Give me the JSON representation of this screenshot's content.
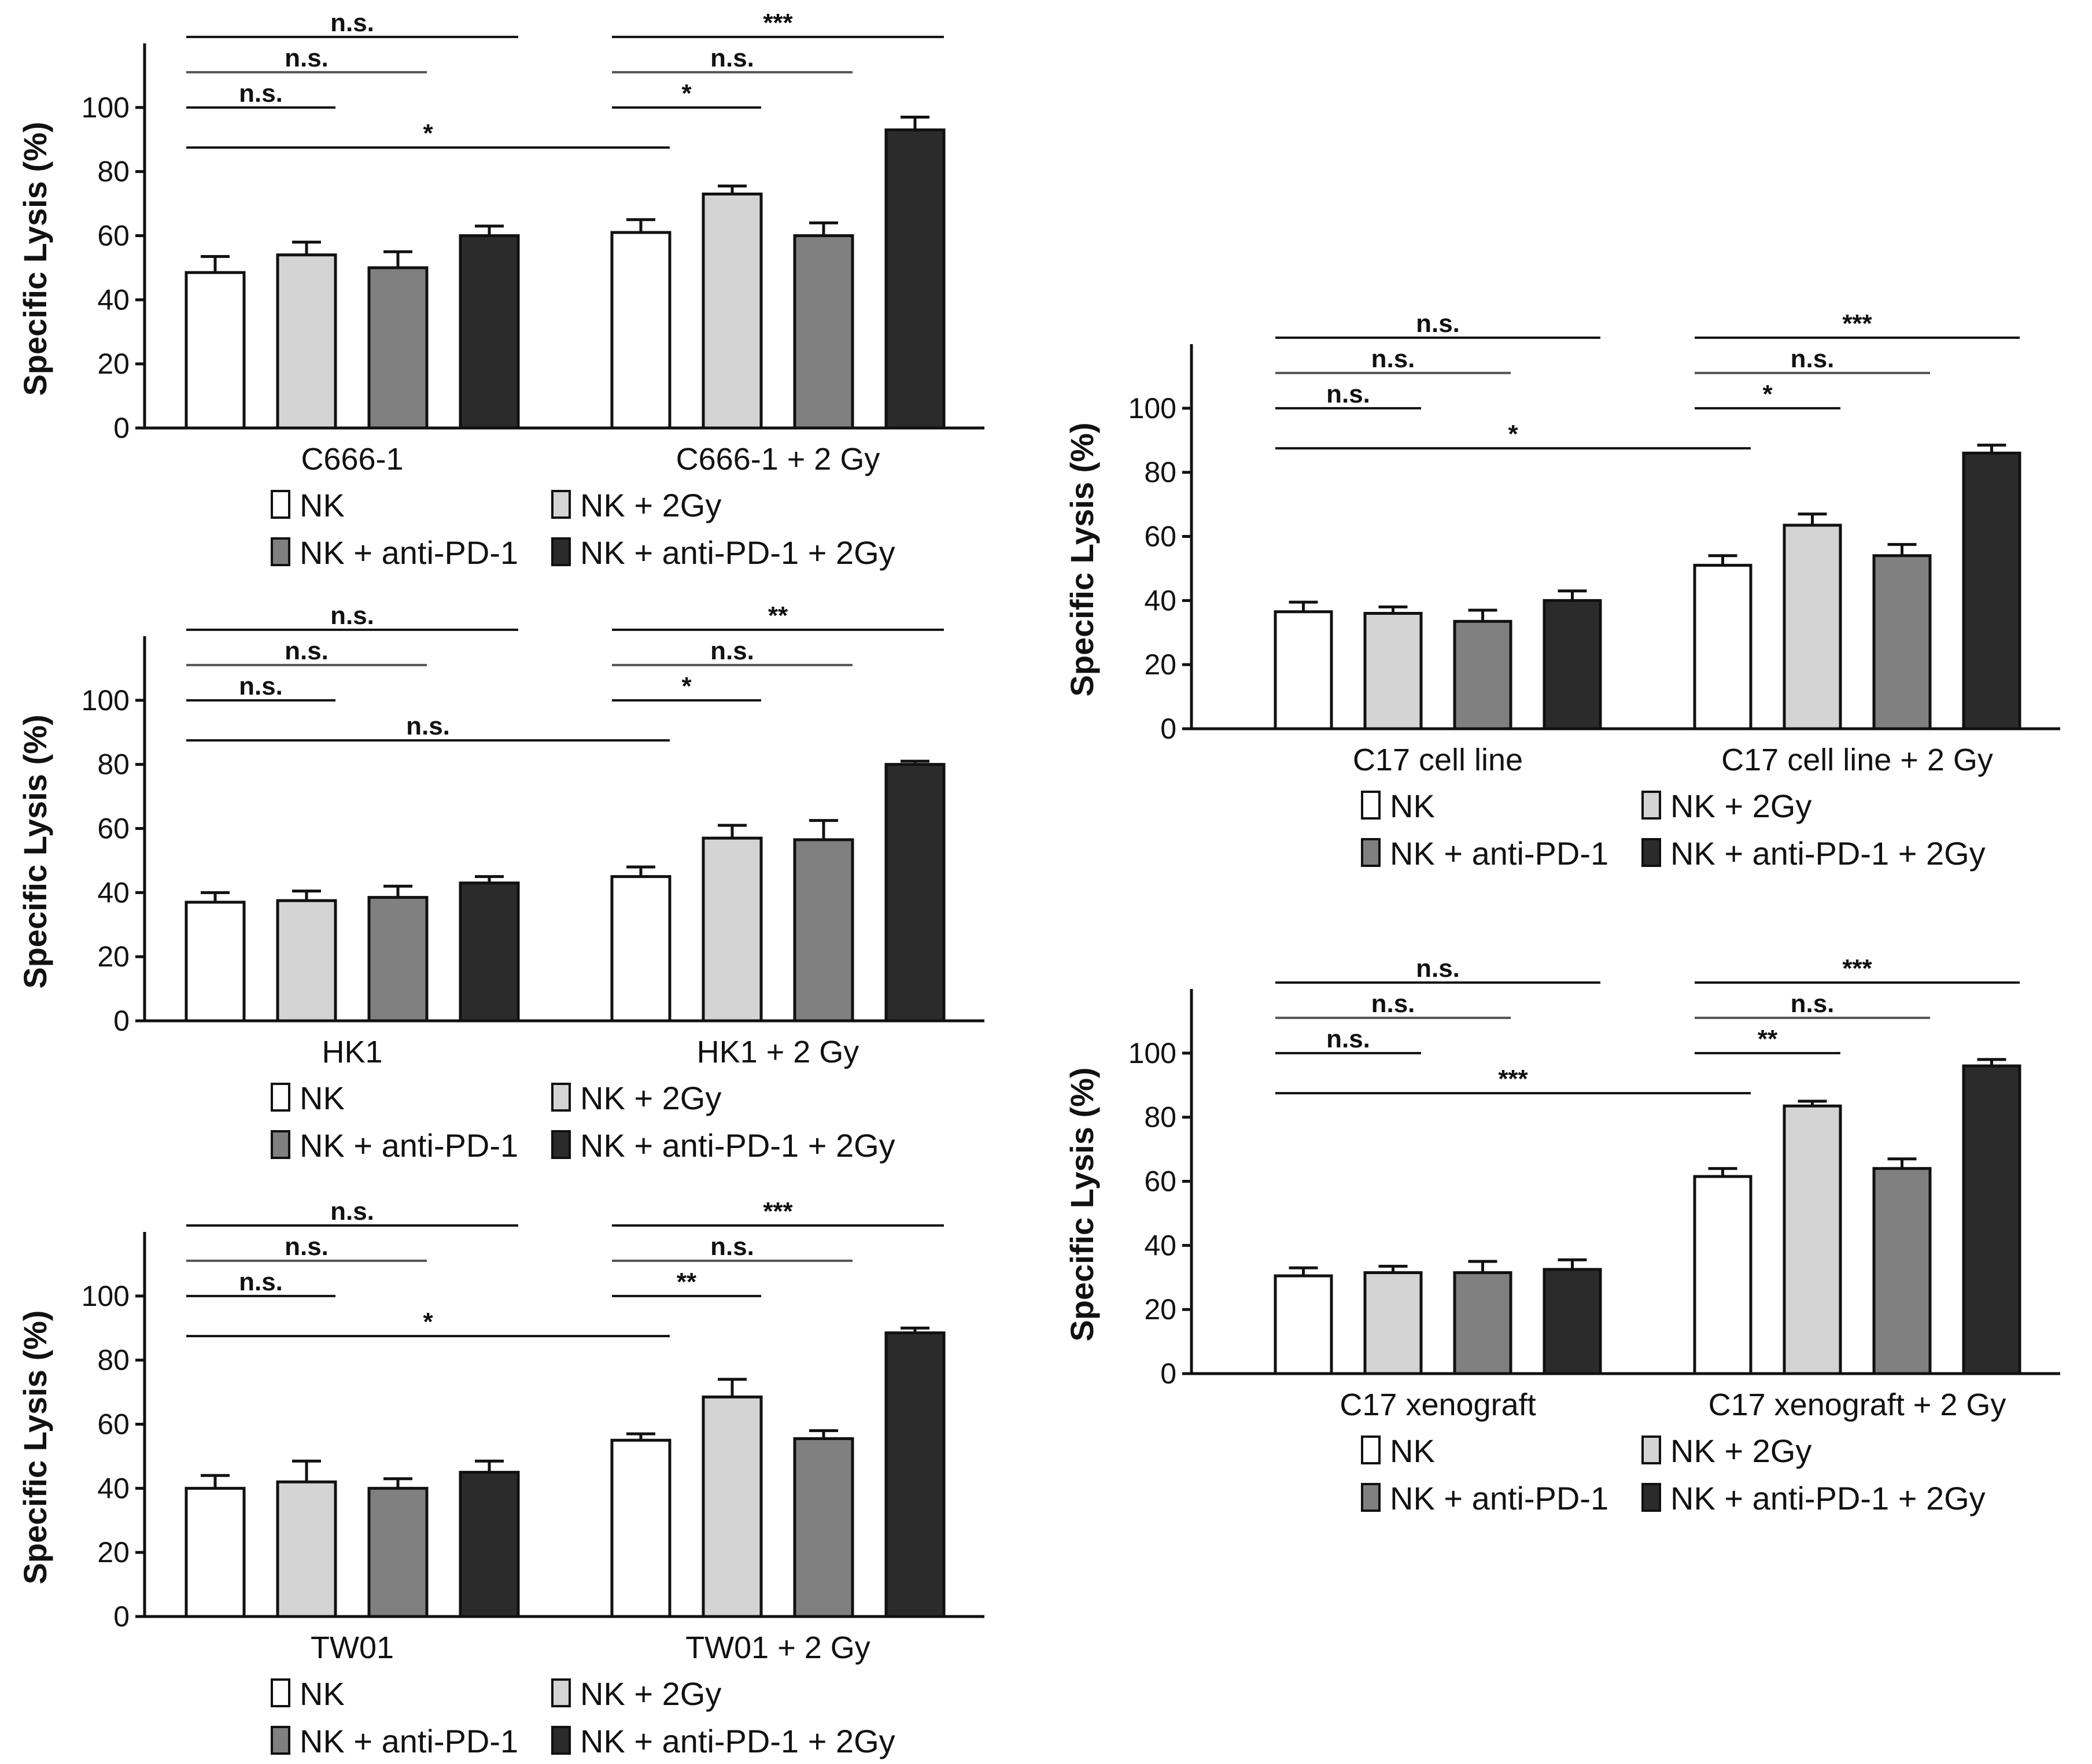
{
  "figure": {
    "legend_labels": [
      "NK",
      "NK + 2Gy",
      "NK + anti-PD-1",
      "NK + anti-PD-1 + 2Gy"
    ],
    "series_colors": [
      "#ffffff",
      "#d4d4d4",
      "#808080",
      "#2b2b2b"
    ]
  },
  "chart_data": [
    {
      "type": "bar",
      "panel": "C666-1",
      "ylabel": "Specific Lysis (%)",
      "ylim": [
        0,
        120
      ],
      "yticks": [
        0,
        20,
        40,
        60,
        80,
        100
      ],
      "categories": [
        "C666-1",
        "C666-1 + 2 Gy"
      ],
      "series": [
        {
          "name": "NK",
          "values": [
            48.5,
            61
          ],
          "errors": [
            5,
            4
          ]
        },
        {
          "name": "NK + 2Gy",
          "values": [
            54,
            73
          ],
          "errors": [
            4,
            2.5
          ]
        },
        {
          "name": "NK + anti-PD-1",
          "values": [
            50,
            60
          ],
          "errors": [
            5,
            4
          ]
        },
        {
          "name": "NK + anti-PD-1 + 2Gy",
          "values": [
            60,
            93
          ],
          "errors": [
            3,
            4
          ]
        }
      ],
      "significance": [
        {
          "from": [
            0,
            0
          ],
          "to": [
            0,
            3
          ],
          "label": "n.s."
        },
        {
          "from": [
            0,
            0
          ],
          "to": [
            0,
            2
          ],
          "label": "n.s."
        },
        {
          "from": [
            0,
            0
          ],
          "to": [
            0,
            1
          ],
          "label": "n.s."
        },
        {
          "from": [
            0,
            0
          ],
          "to": [
            1,
            0
          ],
          "label": "*"
        },
        {
          "from": [
            1,
            0
          ],
          "to": [
            1,
            3
          ],
          "label": "***"
        },
        {
          "from": [
            1,
            0
          ],
          "to": [
            1,
            2
          ],
          "label": "n.s."
        },
        {
          "from": [
            1,
            0
          ],
          "to": [
            1,
            1
          ],
          "label": "*"
        }
      ]
    },
    {
      "type": "bar",
      "panel": "HK1",
      "ylabel": "Specific Lysis (%)",
      "ylim": [
        0,
        120
      ],
      "yticks": [
        0,
        20,
        40,
        60,
        80,
        100
      ],
      "categories": [
        "HK1",
        "HK1 + 2 Gy"
      ],
      "series": [
        {
          "name": "NK",
          "values": [
            37,
            45
          ],
          "errors": [
            3,
            3
          ]
        },
        {
          "name": "NK + 2Gy",
          "values": [
            37.5,
            57
          ],
          "errors": [
            3,
            4
          ]
        },
        {
          "name": "NK + anti-PD-1",
          "values": [
            38.5,
            56.5
          ],
          "errors": [
            3.5,
            6
          ]
        },
        {
          "name": "NK + anti-PD-1 + 2Gy",
          "values": [
            43,
            80
          ],
          "errors": [
            2,
            1
          ]
        }
      ],
      "significance": [
        {
          "from": [
            0,
            0
          ],
          "to": [
            0,
            3
          ],
          "label": "n.s."
        },
        {
          "from": [
            0,
            0
          ],
          "to": [
            0,
            2
          ],
          "label": "n.s."
        },
        {
          "from": [
            0,
            0
          ],
          "to": [
            0,
            1
          ],
          "label": "n.s."
        },
        {
          "from": [
            0,
            0
          ],
          "to": [
            1,
            0
          ],
          "label": "n.s."
        },
        {
          "from": [
            1,
            0
          ],
          "to": [
            1,
            3
          ],
          "label": "**"
        },
        {
          "from": [
            1,
            0
          ],
          "to": [
            1,
            2
          ],
          "label": "n.s."
        },
        {
          "from": [
            1,
            0
          ],
          "to": [
            1,
            1
          ],
          "label": "*"
        }
      ]
    },
    {
      "type": "bar",
      "panel": "TW01",
      "ylabel": "Specific Lysis (%)",
      "ylim": [
        0,
        120
      ],
      "yticks": [
        0,
        20,
        40,
        60,
        80,
        100
      ],
      "categories": [
        "TW01",
        "TW01 + 2 Gy"
      ],
      "series": [
        {
          "name": "NK",
          "values": [
            40,
            55
          ],
          "errors": [
            4,
            2
          ]
        },
        {
          "name": "NK + 2Gy",
          "values": [
            42,
            68.5
          ],
          "errors": [
            6.5,
            5.5
          ]
        },
        {
          "name": "NK + anti-PD-1",
          "values": [
            40,
            55.5
          ],
          "errors": [
            3,
            2.5
          ]
        },
        {
          "name": "NK + anti-PD-1 + 2Gy",
          "values": [
            45,
            88.5
          ],
          "errors": [
            3.5,
            1.5
          ]
        }
      ],
      "significance": [
        {
          "from": [
            0,
            0
          ],
          "to": [
            0,
            3
          ],
          "label": "n.s."
        },
        {
          "from": [
            0,
            0
          ],
          "to": [
            0,
            2
          ],
          "label": "n.s."
        },
        {
          "from": [
            0,
            0
          ],
          "to": [
            0,
            1
          ],
          "label": "n.s."
        },
        {
          "from": [
            0,
            0
          ],
          "to": [
            1,
            0
          ],
          "label": "*"
        },
        {
          "from": [
            1,
            0
          ],
          "to": [
            1,
            3
          ],
          "label": "***"
        },
        {
          "from": [
            1,
            0
          ],
          "to": [
            1,
            2
          ],
          "label": "n.s."
        },
        {
          "from": [
            1,
            0
          ],
          "to": [
            1,
            1
          ],
          "label": "**"
        }
      ]
    },
    {
      "type": "bar",
      "panel": "C17 cell line",
      "ylabel": "Specific Lysis (%)",
      "ylim": [
        0,
        120
      ],
      "yticks": [
        0,
        20,
        40,
        60,
        80,
        100
      ],
      "categories": [
        "C17 cell line",
        "C17 cell line + 2 Gy"
      ],
      "series": [
        {
          "name": "NK",
          "values": [
            36.5,
            51
          ],
          "errors": [
            3,
            3
          ]
        },
        {
          "name": "NK + 2Gy",
          "values": [
            36,
            63.5
          ],
          "errors": [
            2,
            3.5
          ]
        },
        {
          "name": "NK + anti-PD-1",
          "values": [
            33.5,
            54
          ],
          "errors": [
            3.5,
            3.5
          ]
        },
        {
          "name": "NK + anti-PD-1 + 2Gy",
          "values": [
            40,
            86
          ],
          "errors": [
            3,
            2.5
          ]
        }
      ],
      "significance": [
        {
          "from": [
            0,
            0
          ],
          "to": [
            0,
            3
          ],
          "label": "n.s."
        },
        {
          "from": [
            0,
            0
          ],
          "to": [
            0,
            2
          ],
          "label": "n.s."
        },
        {
          "from": [
            0,
            0
          ],
          "to": [
            0,
            1
          ],
          "label": "n.s."
        },
        {
          "from": [
            0,
            0
          ],
          "to": [
            1,
            0
          ],
          "label": "*"
        },
        {
          "from": [
            1,
            0
          ],
          "to": [
            1,
            3
          ],
          "label": "***"
        },
        {
          "from": [
            1,
            0
          ],
          "to": [
            1,
            2
          ],
          "label": "n.s."
        },
        {
          "from": [
            1,
            0
          ],
          "to": [
            1,
            1
          ],
          "label": "*"
        }
      ]
    },
    {
      "type": "bar",
      "panel": "C17 xenograft",
      "ylabel": "Specific Lysis (%)",
      "ylim": [
        0,
        120
      ],
      "yticks": [
        0,
        20,
        40,
        60,
        80,
        100
      ],
      "categories": [
        "C17 xenograft",
        "C17 xenograft + 2 Gy"
      ],
      "series": [
        {
          "name": "NK",
          "values": [
            30.5,
            61.5
          ],
          "errors": [
            2.5,
            2.5
          ]
        },
        {
          "name": "NK + 2Gy",
          "values": [
            31.5,
            83.5
          ],
          "errors": [
            2,
            1.5
          ]
        },
        {
          "name": "NK + anti-PD-1",
          "values": [
            31.5,
            64
          ],
          "errors": [
            3.5,
            3
          ]
        },
        {
          "name": "NK + anti-PD-1 + 2Gy",
          "values": [
            32.5,
            96
          ],
          "errors": [
            3,
            2
          ]
        }
      ],
      "significance": [
        {
          "from": [
            0,
            0
          ],
          "to": [
            0,
            3
          ],
          "label": "n.s."
        },
        {
          "from": [
            0,
            0
          ],
          "to": [
            0,
            2
          ],
          "label": "n.s."
        },
        {
          "from": [
            0,
            0
          ],
          "to": [
            0,
            1
          ],
          "label": "n.s."
        },
        {
          "from": [
            0,
            0
          ],
          "to": [
            1,
            0
          ],
          "label": "***"
        },
        {
          "from": [
            1,
            0
          ],
          "to": [
            1,
            3
          ],
          "label": "***"
        },
        {
          "from": [
            1,
            0
          ],
          "to": [
            1,
            2
          ],
          "label": "n.s."
        },
        {
          "from": [
            1,
            0
          ],
          "to": [
            1,
            1
          ],
          "label": "**"
        }
      ]
    }
  ]
}
